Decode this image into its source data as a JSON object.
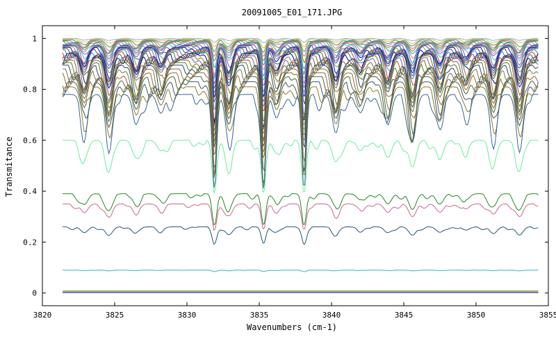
{
  "chart_data": {
    "type": "line",
    "title": "20091005_E01_171.JPG",
    "xlabel": "Wavenumbers (cm-1)",
    "ylabel": "Transmitance",
    "xlim": [
      3820,
      3855
    ],
    "ylim": [
      -0.05,
      1.05
    ],
    "x_range_data": [
      3821.4,
      3854.3
    ],
    "grid": false,
    "legend": "none",
    "x_ticks": [
      3820,
      3825,
      3830,
      3835,
      3840,
      3845,
      3850,
      3855
    ],
    "y_ticks": [
      0,
      0.2,
      0.4,
      0.6,
      0.8,
      1
    ],
    "y_tick_labels": [
      "0",
      "0.2",
      "0.4",
      "0.6",
      "0.8",
      "1"
    ],
    "absorption_lines": [
      3822.9,
      3824.6,
      3826.5,
      3828.2,
      3831.9,
      3832.9,
      3835.3,
      3836.2,
      3838.1,
      3840.3,
      3842.0,
      3843.9,
      3845.6,
      3847.5,
      3849.3,
      3851.2,
      3853.0
    ],
    "strong_lines": [
      3831.9,
      3835.3,
      3838.1
    ],
    "series": [
      {
        "color": "#7fb3ff",
        "baseline": 1.0,
        "depth": 0.01
      },
      {
        "color": "#ffb347",
        "baseline": 0.998,
        "depth": 0.02
      },
      {
        "color": "#33aa33",
        "baseline": 0.995,
        "depth": 0.03
      },
      {
        "color": "#cc66cc",
        "baseline": 0.992,
        "depth": 0.04
      },
      {
        "color": "#888800",
        "baseline": 0.99,
        "depth": 0.05
      },
      {
        "color": "#00aaaa",
        "baseline": 0.988,
        "depth": 0.06
      },
      {
        "color": "#ff6666",
        "baseline": 0.985,
        "depth": 0.07
      },
      {
        "color": "#6666ff",
        "baseline": 0.982,
        "depth": 0.08
      },
      {
        "color": "#44cc88",
        "baseline": 0.98,
        "depth": 0.09
      },
      {
        "color": "#aa4488",
        "baseline": 0.975,
        "depth": 0.1
      },
      {
        "color": "#2255aa",
        "baseline": 0.972,
        "depth": 0.11
      },
      {
        "color": "#889933",
        "baseline": 0.968,
        "depth": 0.12
      },
      {
        "color": "#0000ff",
        "baseline": 0.965,
        "depth": 0.13
      },
      {
        "color": "#555555",
        "baseline": 0.96,
        "depth": 0.14
      },
      {
        "color": "#3388cc",
        "baseline": 0.955,
        "depth": 0.15
      },
      {
        "color": "#cc3333",
        "baseline": 0.95,
        "depth": 0.16
      },
      {
        "color": "#228822",
        "baseline": 0.945,
        "depth": 0.17
      },
      {
        "color": "#0000cc",
        "baseline": 0.94,
        "depth": 0.18
      },
      {
        "color": "#996633",
        "baseline": 0.932,
        "depth": 0.19
      },
      {
        "color": "#666699",
        "baseline": 0.925,
        "depth": 0.2
      },
      {
        "color": "#8b6914",
        "baseline": 0.915,
        "depth": 0.21
      },
      {
        "color": "#557733",
        "baseline": 0.905,
        "depth": 0.22
      },
      {
        "color": "#334466",
        "baseline": 0.895,
        "depth": 0.23
      },
      {
        "color": "#777744",
        "baseline": 0.88,
        "depth": 0.24
      },
      {
        "color": "#996633",
        "baseline": 0.865,
        "depth": 0.25
      },
      {
        "color": "#4a6b3a",
        "baseline": 0.85,
        "depth": 0.26
      },
      {
        "color": "#445566",
        "baseline": 0.83,
        "depth": 0.27
      },
      {
        "color": "#8a7a2a",
        "baseline": 0.81,
        "depth": 0.28
      },
      {
        "color": "#336699",
        "baseline": 0.78,
        "depth": 0.3
      },
      {
        "color": "#66ee99",
        "baseline": 0.6,
        "depth": 0.22
      },
      {
        "color": "#228822",
        "baseline": 0.39,
        "depth": 0.2
      },
      {
        "color": "#cc6688",
        "baseline": 0.35,
        "depth": 0.18
      },
      {
        "color": "#225577",
        "baseline": 0.26,
        "depth": 0.16
      },
      {
        "color": "#22bbbb",
        "baseline": 0.09,
        "depth": 0.04
      },
      {
        "color": "#33aa33",
        "baseline": 0.008,
        "depth": 0.004
      },
      {
        "color": "#cc3333",
        "baseline": 0.004,
        "depth": 0.003
      },
      {
        "color": "#3366cc",
        "baseline": 0.001,
        "depth": 0.002
      }
    ]
  }
}
